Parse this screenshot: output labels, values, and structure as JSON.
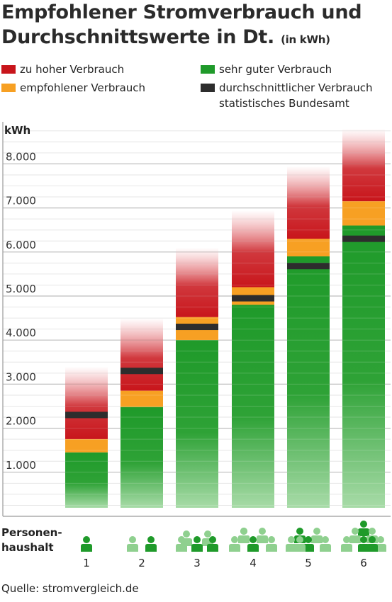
{
  "title": {
    "line1": "Empfohlener Stromverbrauch und",
    "line2": "Durchschnittswerte in Dt.",
    "unit": "(in kWh)"
  },
  "legend": [
    {
      "label": "zu hoher Verbrauch",
      "color": "#c8151b"
    },
    {
      "label": "empfohlener Verbrauch",
      "color": "#f7a023"
    },
    {
      "label": "sehr guter Verbrauch",
      "color": "#1f9a2a"
    },
    {
      "label": "durchschnittlicher Verbrauch",
      "label2": "statistisches Bundesamt",
      "color": "#2d2d2d"
    }
  ],
  "chart_data": {
    "type": "bar",
    "ylabel": "kWh",
    "ylim": [
      0,
      8600
    ],
    "yticks": [
      "1.000",
      "2.000",
      "3.000",
      "4.000",
      "5.000",
      "6.000",
      "7.000",
      "8.000"
    ],
    "ytick_values": [
      1000,
      2000,
      3000,
      4000,
      5000,
      6000,
      7000,
      8000
    ],
    "xlabel": "Personen-haushalt",
    "xlabel_lines": [
      "Personen-",
      "haushalt"
    ],
    "categories": [
      "1",
      "2",
      "3",
      "4",
      "5",
      "6"
    ],
    "series": [
      {
        "name": "sehr guter Verbrauch",
        "values": [
          1450,
          2480,
          4000,
          4800,
          5900,
          6600
        ]
      },
      {
        "name": "empfohlener Verbrauch",
        "values": [
          1750,
          2850,
          4520,
          5200,
          6300,
          7150
        ]
      },
      {
        "name": "durchschnittlicher Verbrauch",
        "values": [
          2300,
          3300,
          4300,
          4950,
          5680,
          6300
        ]
      }
    ],
    "high_top": [
      3400,
      4500,
      6100,
      6950,
      7950,
      8800
    ]
  },
  "source": "Quelle: stromvergleich.de",
  "colors": {
    "grid": "#cfcfcf",
    "axis": "#9a9a9a",
    "icon_dark": "#1f9a2a",
    "icon_light": "#8fd08f"
  }
}
